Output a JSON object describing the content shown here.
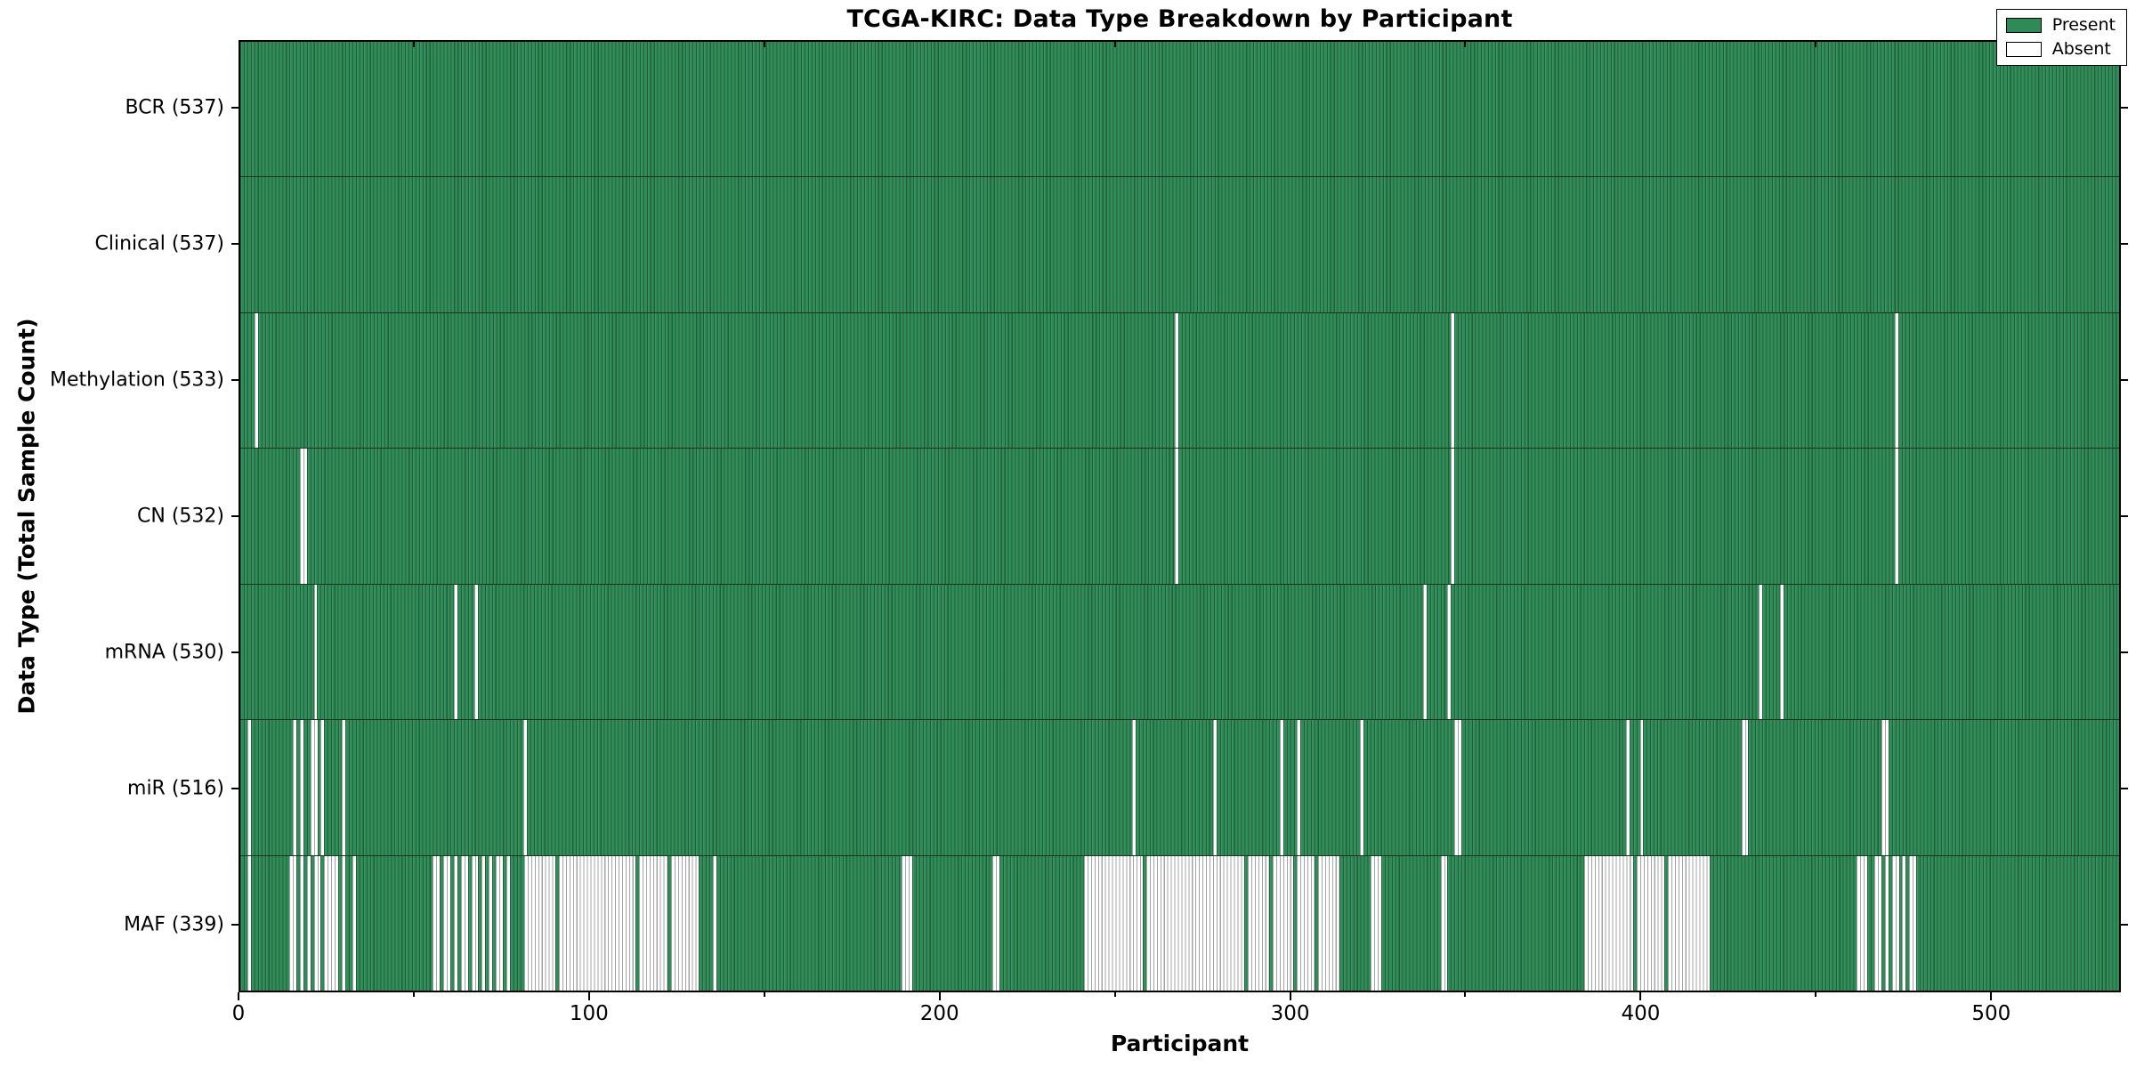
{
  "title": "TCGA-KIRC: Data Type Breakdown by Participant",
  "axes": {
    "x_label": "Participant",
    "y_label": "Data Type (Total Sample Count)"
  },
  "legend": {
    "items": [
      {
        "label": "Present",
        "color": "#2e8b57"
      },
      {
        "label": "Absent",
        "color": "#ffffff"
      }
    ],
    "position": "upper right"
  },
  "colors": {
    "present": "#2e8b57",
    "absent": "#ffffff",
    "border": "#000000"
  },
  "chart_data": {
    "type": "heatmap",
    "title": "TCGA-KIRC: Data Type Breakdown by Participant",
    "xlabel": "Participant",
    "ylabel": "Data Type (Total Sample Count)",
    "legend": [
      "Present",
      "Absent"
    ],
    "legend_position": "upper right",
    "grid": false,
    "n_participants": 537,
    "x_ticks": [
      0,
      100,
      200,
      300,
      400,
      500
    ],
    "x_minor_ticks": [
      50,
      150,
      250,
      350,
      450
    ],
    "xlim": [
      0,
      537
    ],
    "rows": [
      {
        "data_type": "BCR",
        "label": "BCR (537)",
        "present_count": 537,
        "absent_count": 0,
        "absent_ranges": []
      },
      {
        "data_type": "Clinical",
        "label": "Clinical (537)",
        "present_count": 537,
        "absent_count": 0,
        "absent_ranges": []
      },
      {
        "data_type": "Methylation",
        "label": "Methylation (533)",
        "present_count": 533,
        "absent_count": 4,
        "absent_ranges": [
          [
            4,
            4
          ],
          [
            267,
            267
          ],
          [
            346,
            346
          ],
          [
            473,
            473
          ]
        ]
      },
      {
        "data_type": "CN",
        "label": "CN (532)",
        "present_count": 532,
        "absent_count": 5,
        "absent_ranges": [
          [
            17,
            18
          ],
          [
            267,
            267
          ],
          [
            346,
            346
          ],
          [
            473,
            473
          ]
        ]
      },
      {
        "data_type": "mRNA",
        "label": "mRNA (530)",
        "present_count": 530,
        "absent_count": 7,
        "absent_ranges": [
          [
            21,
            21
          ],
          [
            61,
            61
          ],
          [
            67,
            67
          ],
          [
            338,
            338
          ],
          [
            345,
            345
          ],
          [
            434,
            434
          ],
          [
            440,
            440
          ]
        ]
      },
      {
        "data_type": "miR",
        "label": "miR (516)",
        "present_count": 516,
        "absent_count": 21,
        "absent_ranges": [
          [
            2,
            2
          ],
          [
            15,
            15
          ],
          [
            17,
            17
          ],
          [
            20,
            21
          ],
          [
            23,
            23
          ],
          [
            29,
            29
          ],
          [
            81,
            81
          ],
          [
            255,
            255
          ],
          [
            278,
            278
          ],
          [
            297,
            297
          ],
          [
            302,
            302
          ],
          [
            320,
            320
          ],
          [
            347,
            348
          ],
          [
            396,
            396
          ],
          [
            400,
            400
          ],
          [
            429,
            430
          ],
          [
            469,
            470
          ]
        ]
      },
      {
        "data_type": "MAF",
        "label": "MAF (339)",
        "present_count": 339,
        "absent_count": 198,
        "absent_ranges": [
          [
            2,
            2
          ],
          [
            14,
            15
          ],
          [
            17,
            17
          ],
          [
            19,
            19
          ],
          [
            21,
            22
          ],
          [
            24,
            27
          ],
          [
            29,
            29
          ],
          [
            32,
            32
          ],
          [
            55,
            56
          ],
          [
            58,
            59
          ],
          [
            61,
            61
          ],
          [
            63,
            64
          ],
          [
            66,
            67
          ],
          [
            69,
            69
          ],
          [
            71,
            71
          ],
          [
            73,
            74
          ],
          [
            76,
            76
          ],
          [
            81,
            89
          ],
          [
            91,
            112
          ],
          [
            114,
            121
          ],
          [
            123,
            130
          ],
          [
            135,
            135
          ],
          [
            189,
            191
          ],
          [
            215,
            216
          ],
          [
            241,
            257
          ],
          [
            259,
            286
          ],
          [
            288,
            293
          ],
          [
            295,
            300
          ],
          [
            302,
            306
          ],
          [
            308,
            313
          ],
          [
            323,
            325
          ],
          [
            343,
            344
          ],
          [
            384,
            397
          ],
          [
            399,
            406
          ],
          [
            408,
            419
          ],
          [
            462,
            464
          ],
          [
            467,
            468
          ],
          [
            470,
            470
          ],
          [
            472,
            473
          ],
          [
            475,
            475
          ],
          [
            477,
            478
          ]
        ]
      }
    ]
  }
}
